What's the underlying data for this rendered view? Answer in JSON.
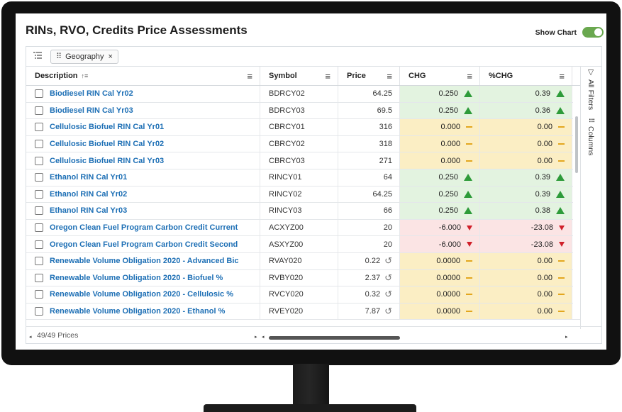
{
  "header": {
    "title": "RINs, RVO, Credits Price Assessments",
    "show_chart_label": "Show Chart",
    "show_chart_on": true
  },
  "group_bar": {
    "chip_label": "Geography",
    "chip_remove": "×"
  },
  "columns": {
    "description": "Description",
    "symbol": "Symbol",
    "price": "Price",
    "chg": "CHG",
    "pchg": "%CHG"
  },
  "side_panel": {
    "filters_label": "All Filters",
    "columns_label": "Columns"
  },
  "rows": [
    {
      "description": "Biodiesel RIN Cal Yr02",
      "symbol": "BDRCY02",
      "price": "64.25",
      "chg": "0.250",
      "pchg": "0.39",
      "trend": "up",
      "history": false
    },
    {
      "description": "Biodiesel RIN Cal Yr03",
      "symbol": "BDRCY03",
      "price": "69.5",
      "chg": "0.250",
      "pchg": "0.36",
      "trend": "up",
      "history": false
    },
    {
      "description": "Cellulosic Biofuel RIN Cal Yr01",
      "symbol": "CBRCY01",
      "price": "316",
      "chg": "0.000",
      "pchg": "0.00",
      "trend": "flat",
      "history": false
    },
    {
      "description": "Cellulosic Biofuel RIN Cal Yr02",
      "symbol": "CBRCY02",
      "price": "318",
      "chg": "0.000",
      "pchg": "0.00",
      "trend": "flat",
      "history": false
    },
    {
      "description": "Cellulosic Biofuel RIN Cal Yr03",
      "symbol": "CBRCY03",
      "price": "271",
      "chg": "0.000",
      "pchg": "0.00",
      "trend": "flat",
      "history": false
    },
    {
      "description": "Ethanol RIN Cal Yr01",
      "symbol": "RINCY01",
      "price": "64",
      "chg": "0.250",
      "pchg": "0.39",
      "trend": "up",
      "history": false
    },
    {
      "description": "Ethanol RIN Cal Yr02",
      "symbol": "RINCY02",
      "price": "64.25",
      "chg": "0.250",
      "pchg": "0.39",
      "trend": "up",
      "history": false
    },
    {
      "description": "Ethanol RIN Cal Yr03",
      "symbol": "RINCY03",
      "price": "66",
      "chg": "0.250",
      "pchg": "0.38",
      "trend": "up",
      "history": false
    },
    {
      "description": "Oregon Clean Fuel Program Carbon Credit Current",
      "symbol": "ACXYZ00",
      "price": "20",
      "chg": "-6.000",
      "pchg": "-23.08",
      "trend": "down",
      "history": false
    },
    {
      "description": "Oregon Clean Fuel Program Carbon Credit Second",
      "symbol": "ASXYZ00",
      "price": "20",
      "chg": "-6.000",
      "pchg": "-23.08",
      "trend": "down",
      "history": false
    },
    {
      "description": "Renewable Volume Obligation 2020 - Advanced Bic",
      "symbol": "RVAY020",
      "price": "0.22",
      "chg": "0.0000",
      "pchg": "0.00",
      "trend": "flat",
      "history": true
    },
    {
      "description": "Renewable Volume Obligation 2020 - Biofuel %",
      "symbol": "RVBY020",
      "price": "2.37",
      "chg": "0.0000",
      "pchg": "0.00",
      "trend": "flat",
      "history": true
    },
    {
      "description": "Renewable Volume Obligation 2020 - Cellulosic %",
      "symbol": "RVCY020",
      "price": "0.32",
      "chg": "0.0000",
      "pchg": "0.00",
      "trend": "flat",
      "history": true
    },
    {
      "description": "Renewable Volume Obligation 2020 - Ethanol %",
      "symbol": "RVEY020",
      "price": "7.87",
      "chg": "0.0000",
      "pchg": "0.00",
      "trend": "flat",
      "history": true
    }
  ],
  "footer": {
    "count_text": "49/49 Prices"
  },
  "colors": {
    "link": "#1d6fb5",
    "up_bg": "#e3f3e0",
    "flat_bg": "#fbeec4",
    "down_bg": "#fbe4e4",
    "up_arrow": "#2e9b3a",
    "down_arrow": "#d0202a",
    "flat_dash": "#e3a71f",
    "toggle": "#6aa84f"
  }
}
